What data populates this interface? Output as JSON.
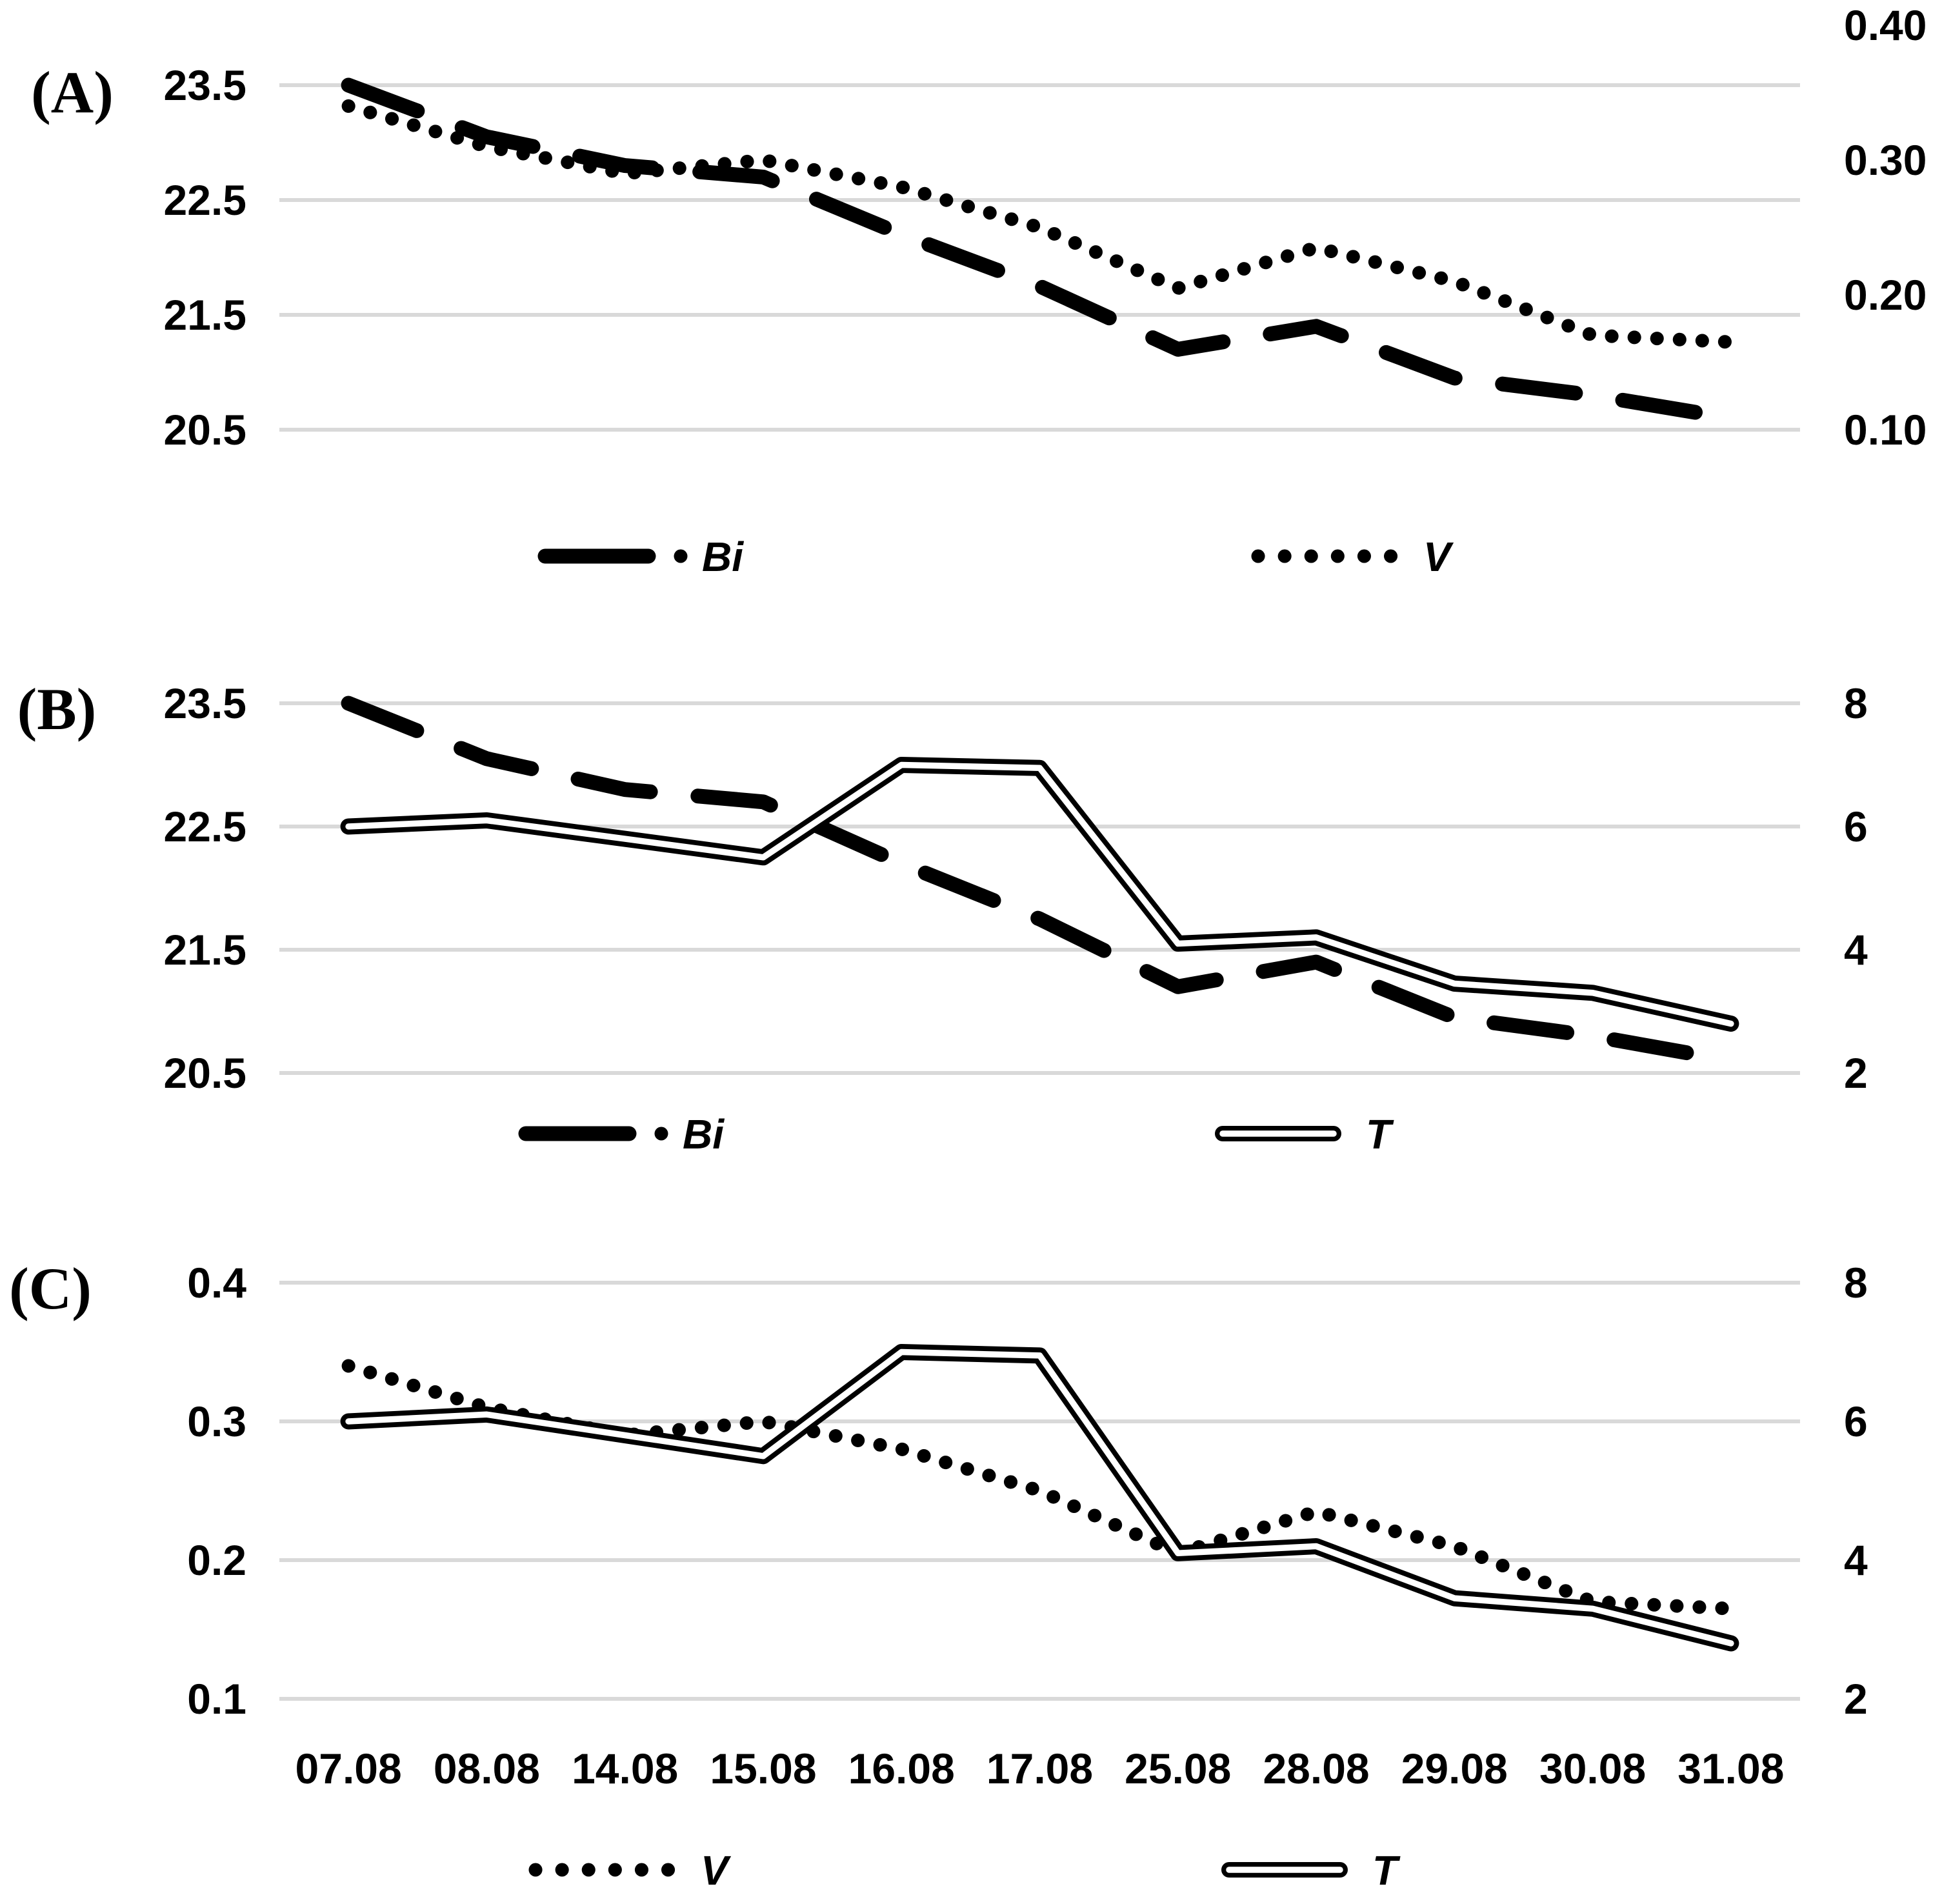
{
  "figure": {
    "background": "#ffffff",
    "ink_color": "#000000",
    "grid_color": "#d9d9d9",
    "panel_labels": [
      "(A)",
      "(B)",
      "(C)"
    ]
  },
  "categories": [
    "07.08",
    "08.08",
    "14.08",
    "15.08",
    "16.08",
    "17.08",
    "25.08",
    "28.08",
    "29.08",
    "30.08",
    "31.08"
  ],
  "chart_data": [
    {
      "panel": "(A)",
      "type": "line",
      "grid": "horizontal",
      "legend_position": "bottom",
      "categories": [
        "07.08",
        "08.08",
        "14.08",
        "15.08",
        "16.08",
        "17.08",
        "25.08",
        "28.08",
        "29.08",
        "30.08",
        "31.08"
      ],
      "series": [
        {
          "name": "Bi",
          "axis": "left",
          "style": "thick-dashed",
          "values": [
            23.5,
            23.05,
            22.8,
            22.7,
            22.2,
            21.75,
            21.2,
            21.4,
            20.95,
            20.8,
            20.6
          ]
        },
        {
          "name": "V",
          "axis": "right",
          "style": "dotted",
          "values": [
            0.34,
            0.31,
            0.29,
            0.3,
            0.28,
            0.25,
            0.205,
            0.235,
            0.21,
            0.17,
            0.165
          ]
        }
      ],
      "left_axis": {
        "tick_labels": [
          "23.5",
          "22.5",
          "21.5",
          "20.5"
        ],
        "tick_values": [
          23.5,
          22.5,
          21.5,
          20.5
        ],
        "min": 20.5,
        "max": 24.0
      },
      "right_axis": {
        "tick_labels": [
          "0.40",
          "0.30",
          "0.20",
          "0.10"
        ],
        "tick_values": [
          0.4,
          0.3,
          0.2,
          0.1
        ],
        "min": 0.1,
        "max": 0.4
      },
      "legend": [
        "Bi",
        "V"
      ],
      "x_axis_labels_visible": false
    },
    {
      "panel": "(B)",
      "type": "line",
      "grid": "horizontal",
      "legend_position": "bottom",
      "categories": [
        "07.08",
        "08.08",
        "14.08",
        "15.08",
        "16.08",
        "17.08",
        "25.08",
        "28.08",
        "29.08",
        "30.08",
        "31.08"
      ],
      "series": [
        {
          "name": "Bi",
          "axis": "left",
          "style": "thick-dashed",
          "values": [
            23.5,
            23.05,
            22.8,
            22.7,
            22.2,
            21.75,
            21.2,
            21.4,
            20.95,
            20.8,
            20.6
          ]
        },
        {
          "name": "T",
          "axis": "right",
          "style": "double-line",
          "values": [
            6.0,
            6.1,
            5.8,
            5.5,
            7.0,
            6.95,
            4.1,
            4.2,
            3.45,
            3.3,
            2.8
          ]
        }
      ],
      "left_axis": {
        "tick_labels": [
          "23.5",
          "22.5",
          "21.5",
          "20.5"
        ],
        "tick_values": [
          23.5,
          22.5,
          21.5,
          20.5
        ],
        "min": 20.5,
        "max": 23.5
      },
      "right_axis": {
        "tick_labels": [
          "8",
          "6",
          "4",
          "2"
        ],
        "tick_values": [
          8,
          6,
          4,
          2
        ],
        "min": 2,
        "max": 8
      },
      "legend": [
        "Bi",
        "T"
      ],
      "x_axis_labels_visible": false
    },
    {
      "panel": "(C)",
      "type": "line",
      "grid": "horizontal",
      "legend_position": "bottom",
      "categories": [
        "07.08",
        "08.08",
        "14.08",
        "15.08",
        "16.08",
        "17.08",
        "25.08",
        "28.08",
        "29.08",
        "30.08",
        "31.08"
      ],
      "series": [
        {
          "name": "V",
          "axis": "left",
          "style": "dotted",
          "values": [
            0.34,
            0.31,
            0.29,
            0.3,
            0.28,
            0.25,
            0.205,
            0.235,
            0.21,
            0.17,
            0.165
          ]
        },
        {
          "name": "T",
          "axis": "right",
          "style": "double-line",
          "values": [
            6.0,
            6.1,
            5.8,
            5.5,
            7.0,
            6.95,
            4.1,
            4.2,
            3.45,
            3.3,
            2.8
          ]
        }
      ],
      "left_axis": {
        "tick_labels": [
          "0.4",
          "0.3",
          "0.2",
          "0.1"
        ],
        "tick_values": [
          0.4,
          0.3,
          0.2,
          0.1
        ],
        "min": 0.1,
        "max": 0.4
      },
      "right_axis": {
        "tick_labels": [
          "8",
          "6",
          "4",
          "2"
        ],
        "tick_values": [
          8,
          6,
          4,
          2
        ],
        "min": 2,
        "max": 8
      },
      "legend": [
        "V",
        "T"
      ],
      "x_axis_labels_visible": true
    }
  ]
}
